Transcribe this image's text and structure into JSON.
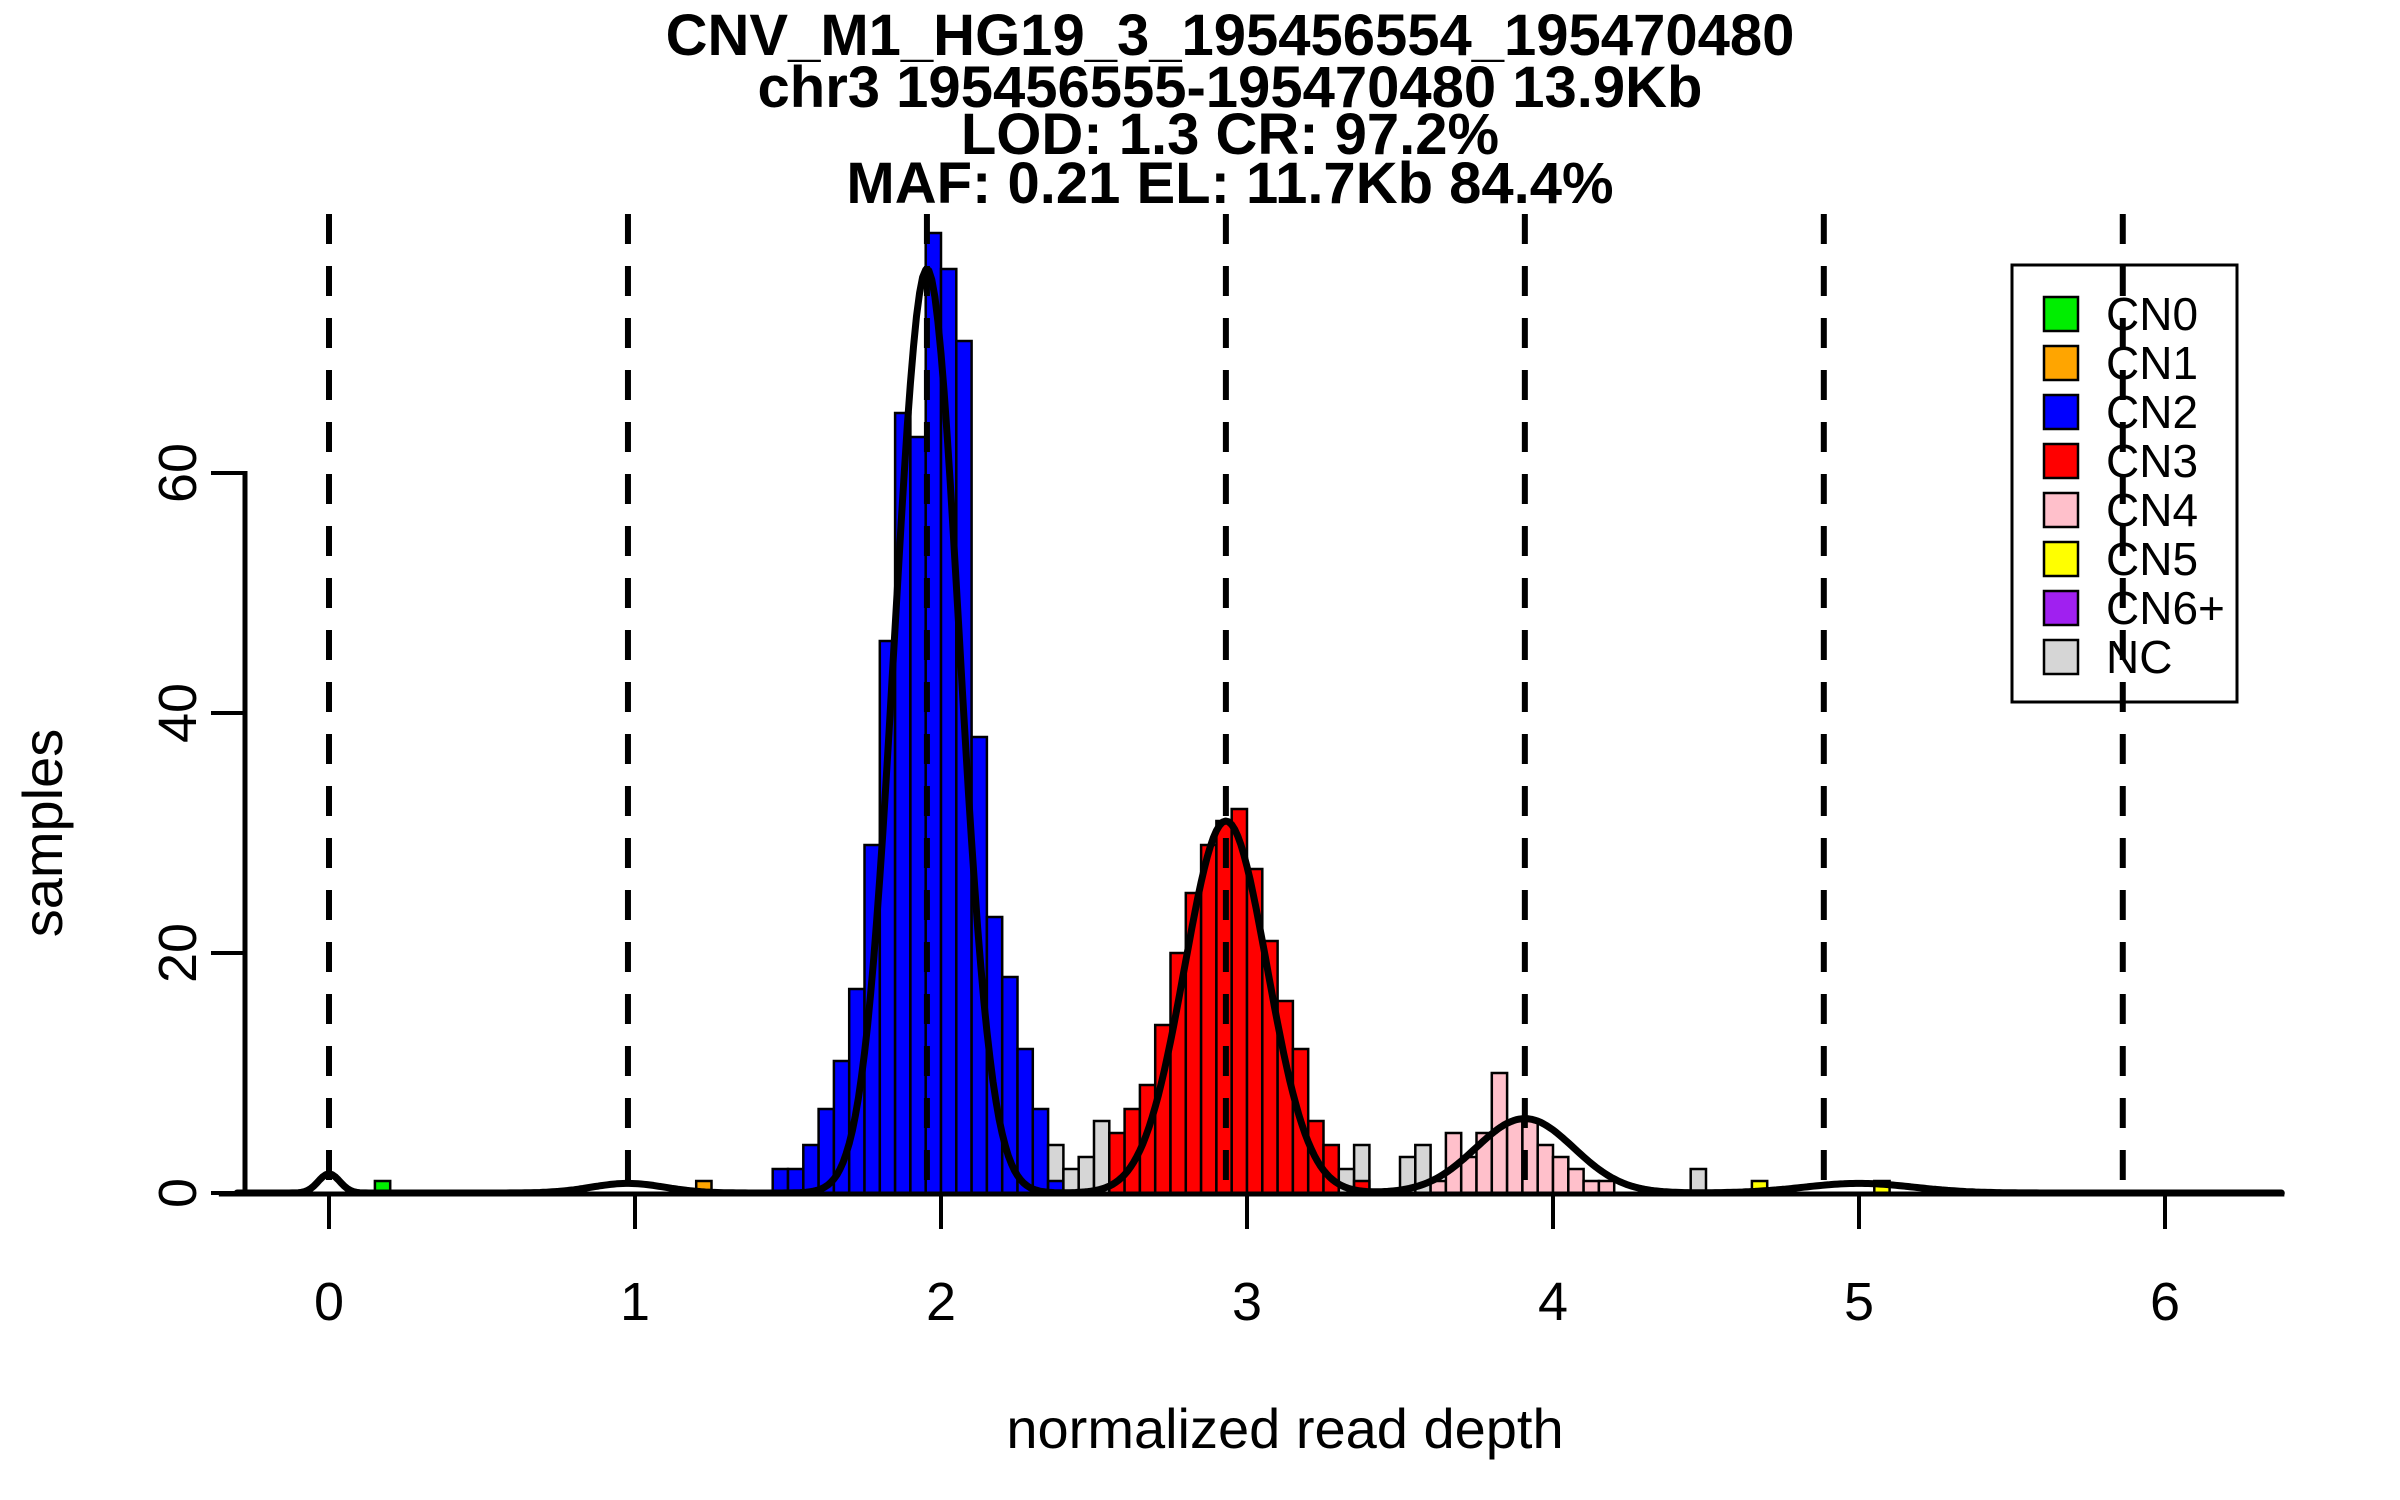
{
  "title": {
    "line1": "CNV_M1_HG19_3_195456554_195470480",
    "line2": "chr3 195456555-195470480 13.9Kb",
    "line3": "LOD: 1.3 CR: 97.2%",
    "line4": "MAF: 0.21 EL: 11.7Kb 84.4%"
  },
  "axes": {
    "x_label": "normalized read depth",
    "y_label": "samples",
    "x_ticks": [
      0,
      1,
      2,
      3,
      4,
      5,
      6
    ],
    "y_ticks": [
      0,
      20,
      40,
      60
    ]
  },
  "legend": {
    "entries": [
      {
        "label": "CN0",
        "color": "#00EE00"
      },
      {
        "label": "CN1",
        "color": "#FFA500"
      },
      {
        "label": "CN2",
        "color": "#0000FF"
      },
      {
        "label": "CN3",
        "color": "#FF0000"
      },
      {
        "label": "CN4",
        "color": "#FFC0CB"
      },
      {
        "label": "CN5",
        "color": "#FFFF00"
      },
      {
        "label": "CN6+",
        "color": "#A020F0"
      },
      {
        "label": "NC",
        "color": "#D6D6D6"
      }
    ]
  },
  "chart_data": {
    "type": "bar",
    "subtype": "histogram-with-density-overlay",
    "title": "CNV_M1_HG19_3_195456554_195470480",
    "xlabel": "normalized read depth",
    "ylabel": "samples",
    "xlim": [
      -0.36,
      6.39
    ],
    "ylim": [
      0,
      85
    ],
    "bin_width": 0.05,
    "grid": false,
    "legend_position": "top-right",
    "dashed_vlines": [
      0,
      0.977,
      1.954,
      2.931,
      3.908,
      4.885,
      5.862
    ],
    "bars": [
      {
        "x": 0.15,
        "h": 1,
        "cn": "CN0"
      },
      {
        "x": 1.2,
        "h": 1,
        "cn": "CN1"
      },
      {
        "x": 1.45,
        "h": 2,
        "cn": "CN2"
      },
      {
        "x": 1.5,
        "h": 2,
        "cn": "CN2"
      },
      {
        "x": 1.55,
        "h": 4,
        "cn": "CN2"
      },
      {
        "x": 1.6,
        "h": 7,
        "cn": "CN2"
      },
      {
        "x": 1.65,
        "h": 11,
        "cn": "CN2"
      },
      {
        "x": 1.7,
        "h": 17,
        "cn": "CN2"
      },
      {
        "x": 1.75,
        "h": 29,
        "cn": "CN2"
      },
      {
        "x": 1.8,
        "h": 46,
        "cn": "CN2"
      },
      {
        "x": 1.85,
        "h": 65,
        "cn": "CN2"
      },
      {
        "x": 1.9,
        "h": 63,
        "cn": "CN2"
      },
      {
        "x": 1.95,
        "h": 80,
        "cn": "CN2"
      },
      {
        "x": 2.0,
        "h": 77,
        "cn": "CN2"
      },
      {
        "x": 2.05,
        "h": 71,
        "cn": "CN2"
      },
      {
        "x": 2.1,
        "h": 38,
        "cn": "CN2"
      },
      {
        "x": 2.15,
        "h": 23,
        "cn": "CN2"
      },
      {
        "x": 2.2,
        "h": 18,
        "cn": "CN2"
      },
      {
        "x": 2.25,
        "h": 12,
        "cn": "CN2"
      },
      {
        "x": 2.3,
        "h": 7,
        "cn": "CN2"
      },
      {
        "x": 2.35,
        "h": 4,
        "cn": "NC"
      },
      {
        "x": 2.35,
        "h": 1,
        "cn": "CN2"
      },
      {
        "x": 2.4,
        "h": 2,
        "cn": "NC"
      },
      {
        "x": 2.45,
        "h": 3,
        "cn": "NC"
      },
      {
        "x": 2.5,
        "h": 6,
        "cn": "NC"
      },
      {
        "x": 2.55,
        "h": 5,
        "cn": "CN3"
      },
      {
        "x": 2.6,
        "h": 7,
        "cn": "CN3"
      },
      {
        "x": 2.65,
        "h": 9,
        "cn": "CN3"
      },
      {
        "x": 2.7,
        "h": 14,
        "cn": "CN3"
      },
      {
        "x": 2.75,
        "h": 20,
        "cn": "CN3"
      },
      {
        "x": 2.8,
        "h": 25,
        "cn": "CN3"
      },
      {
        "x": 2.85,
        "h": 29,
        "cn": "CN3"
      },
      {
        "x": 2.9,
        "h": 31,
        "cn": "CN3"
      },
      {
        "x": 2.95,
        "h": 32,
        "cn": "CN3"
      },
      {
        "x": 3.0,
        "h": 27,
        "cn": "CN3"
      },
      {
        "x": 3.05,
        "h": 21,
        "cn": "CN3"
      },
      {
        "x": 3.1,
        "h": 16,
        "cn": "CN3"
      },
      {
        "x": 3.15,
        "h": 12,
        "cn": "CN3"
      },
      {
        "x": 3.2,
        "h": 6,
        "cn": "CN3"
      },
      {
        "x": 3.25,
        "h": 4,
        "cn": "CN3"
      },
      {
        "x": 3.3,
        "h": 2,
        "cn": "NC"
      },
      {
        "x": 3.35,
        "h": 4,
        "cn": "NC"
      },
      {
        "x": 3.35,
        "h": 1,
        "cn": "CN3"
      },
      {
        "x": 3.5,
        "h": 3,
        "cn": "NC"
      },
      {
        "x": 3.55,
        "h": 4,
        "cn": "NC"
      },
      {
        "x": 3.6,
        "h": 1,
        "cn": "CN4"
      },
      {
        "x": 3.65,
        "h": 5,
        "cn": "CN4"
      },
      {
        "x": 3.7,
        "h": 3,
        "cn": "CN4"
      },
      {
        "x": 3.75,
        "h": 5,
        "cn": "CN4"
      },
      {
        "x": 3.8,
        "h": 10,
        "cn": "CN4"
      },
      {
        "x": 3.85,
        "h": 6,
        "cn": "CN4"
      },
      {
        "x": 3.9,
        "h": 6,
        "cn": "CN4"
      },
      {
        "x": 3.95,
        "h": 4,
        "cn": "CN4"
      },
      {
        "x": 4.0,
        "h": 3,
        "cn": "CN4"
      },
      {
        "x": 4.05,
        "h": 2,
        "cn": "CN4"
      },
      {
        "x": 4.1,
        "h": 1,
        "cn": "CN4"
      },
      {
        "x": 4.15,
        "h": 1,
        "cn": "CN4"
      },
      {
        "x": 4.45,
        "h": 2,
        "cn": "NC"
      },
      {
        "x": 4.65,
        "h": 1,
        "cn": "CN5"
      },
      {
        "x": 5.05,
        "h": 1,
        "cn": "CN5"
      }
    ],
    "density_components": [
      {
        "center": 0,
        "height": 1.6,
        "sigma": 0.035
      },
      {
        "center": 0.977,
        "height": 0.8,
        "sigma": 0.12
      },
      {
        "center": 1.954,
        "height": 77,
        "sigma": 0.105
      },
      {
        "center": 2.931,
        "height": 31,
        "sigma": 0.135
      },
      {
        "center": 3.908,
        "height": 6.2,
        "sigma": 0.16
      },
      {
        "center": 5.0,
        "height": 0.8,
        "sigma": 0.18
      }
    ]
  }
}
